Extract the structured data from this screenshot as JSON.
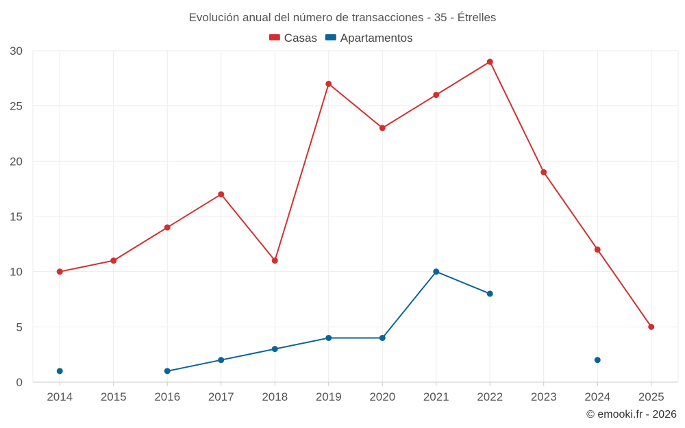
{
  "chart_data": {
    "type": "line",
    "title": "Evolución anual del número de transacciones - 35 - Étrelles",
    "categories": [
      "2014",
      "2015",
      "2016",
      "2017",
      "2018",
      "2019",
      "2020",
      "2021",
      "2022",
      "2023",
      "2024",
      "2025"
    ],
    "ylim": [
      0,
      30
    ],
    "yticks": [
      0,
      5,
      10,
      15,
      20,
      25,
      30
    ],
    "grid": true,
    "legend_position": "top-center",
    "series": [
      {
        "name": "Casas",
        "color": "#d32f2f",
        "values": [
          10,
          11,
          14,
          17,
          11,
          27,
          23,
          26,
          29,
          19,
          12,
          5
        ]
      },
      {
        "name": "Apartamentos",
        "color": "#0a6496",
        "values": [
          1,
          null,
          1,
          2,
          3,
          4,
          4,
          10,
          8,
          null,
          2,
          null
        ]
      }
    ]
  },
  "credit": "© emooki.fr - 2026"
}
